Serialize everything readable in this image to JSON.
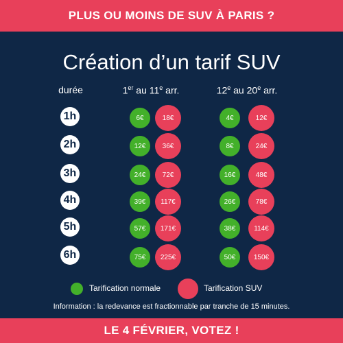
{
  "header": {
    "banner": "PLUS OU MOINS DE SUV À PARIS ?"
  },
  "main": {
    "title": "Création d’un tarif SUV",
    "columns": {
      "duration": "durée",
      "zone1": {
        "start": "1",
        "start_sup": "er",
        "mid": " au 11",
        "end_sup": "e",
        "suffix": " arr."
      },
      "zone2": {
        "start": "12",
        "start_sup": "e",
        "mid": " au 20",
        "end_sup": "e",
        "suffix": " arr."
      }
    },
    "rows": [
      {
        "duration": "1h",
        "z1_normal": "6€",
        "z1_suv": "18€",
        "z2_normal": "4€",
        "z2_suv": "12€"
      },
      {
        "duration": "2h",
        "z1_normal": "12€",
        "z1_suv": "36€",
        "z2_normal": "8€",
        "z2_suv": "24€"
      },
      {
        "duration": "3h",
        "z1_normal": "24€",
        "z1_suv": "72€",
        "z2_normal": "16€",
        "z2_suv": "48€"
      },
      {
        "duration": "4h",
        "z1_normal": "39€",
        "z1_suv": "117€",
        "z2_normal": "26€",
        "z2_suv": "78€"
      },
      {
        "duration": "5h",
        "z1_normal": "57€",
        "z1_suv": "171€",
        "z2_normal": "38€",
        "z2_suv": "114€"
      },
      {
        "duration": "6h",
        "z1_normal": "75€",
        "z1_suv": "225€",
        "z2_normal": "50€",
        "z2_suv": "150€"
      }
    ],
    "legend": {
      "normal": "Tarification normale",
      "suv": "Tarification SUV"
    },
    "info": "Information : la redevance est fractionnable par tranche de 15 minutes."
  },
  "footer": {
    "banner": "LE 4 FÉVRIER, VOTEZ !"
  },
  "colors": {
    "background": "#0f2746",
    "red": "#e8405a",
    "green": "#43b02a"
  }
}
